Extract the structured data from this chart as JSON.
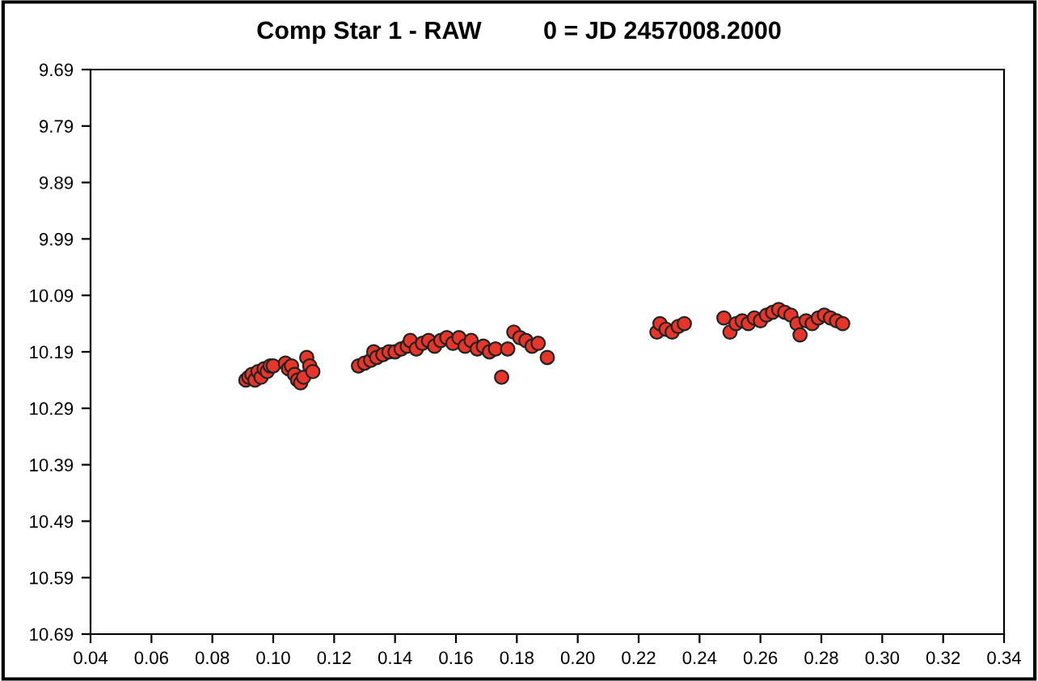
{
  "chart_data": {
    "type": "scatter",
    "title": "Comp Star 1 - RAW         0 = JD 2457008.2000",
    "xlim": [
      0.04,
      0.34
    ],
    "xticks": [
      {
        "value": 0.04,
        "label": "0.04"
      },
      {
        "value": 0.06,
        "label": "0.06"
      },
      {
        "value": 0.08,
        "label": "0.08"
      },
      {
        "value": 0.1,
        "label": "0.10"
      },
      {
        "value": 0.12,
        "label": "0.12"
      },
      {
        "value": 0.14,
        "label": "0.14"
      },
      {
        "value": 0.16,
        "label": "0.16"
      },
      {
        "value": 0.18,
        "label": "0.18"
      },
      {
        "value": 0.2,
        "label": "0.20"
      },
      {
        "value": 0.22,
        "label": "0.22"
      },
      {
        "value": 0.24,
        "label": "0.24"
      },
      {
        "value": 0.26,
        "label": "0.26"
      },
      {
        "value": 0.28,
        "label": "0.28"
      },
      {
        "value": 0.3,
        "label": "0.30"
      },
      {
        "value": 0.32,
        "label": "0.32"
      },
      {
        "value": 0.34,
        "label": "0.34"
      }
    ],
    "ylim": [
      10.69,
      9.69
    ],
    "yticks": [
      9.69,
      9.79,
      9.89,
      9.99,
      10.09,
      10.19,
      10.29,
      10.39,
      10.49,
      10.59,
      10.69
    ],
    "grid": false,
    "marker": "circle",
    "series": [
      {
        "color": "#e8352a",
        "x": [
          0.091,
          0.092,
          0.093,
          0.094,
          0.095,
          0.096,
          0.097,
          0.098,
          0.099,
          0.1,
          0.104,
          0.105,
          0.106,
          0.107,
          0.108,
          0.109,
          0.11,
          0.111,
          0.112,
          0.113,
          0.128,
          0.13,
          0.132,
          0.133,
          0.134,
          0.136,
          0.138,
          0.14,
          0.142,
          0.144,
          0.145,
          0.147,
          0.149,
          0.151,
          0.153,
          0.155,
          0.157,
          0.159,
          0.161,
          0.163,
          0.165,
          0.167,
          0.169,
          0.171,
          0.173,
          0.175,
          0.177,
          0.179,
          0.181,
          0.183,
          0.185,
          0.187,
          0.19,
          0.226,
          0.227,
          0.229,
          0.231,
          0.233,
          0.235,
          0.248,
          0.25,
          0.252,
          0.254,
          0.256,
          0.258,
          0.26,
          0.262,
          0.264,
          0.266,
          0.268,
          0.27,
          0.272,
          0.273,
          0.275,
          0.277,
          0.279,
          0.281,
          0.283,
          0.285,
          0.287
        ],
        "values": [
          10.24,
          10.235,
          10.23,
          10.24,
          10.225,
          10.235,
          10.22,
          10.225,
          10.215,
          10.215,
          10.21,
          10.22,
          10.215,
          10.23,
          10.24,
          10.245,
          10.235,
          10.2,
          10.215,
          10.225,
          10.215,
          10.21,
          10.205,
          10.19,
          10.2,
          10.195,
          10.19,
          10.19,
          10.185,
          10.18,
          10.17,
          10.185,
          10.175,
          10.17,
          10.18,
          10.17,
          10.165,
          10.175,
          10.165,
          10.18,
          10.17,
          10.185,
          10.18,
          10.19,
          10.185,
          10.235,
          10.185,
          10.155,
          10.165,
          10.17,
          10.18,
          10.175,
          10.2,
          10.155,
          10.14,
          10.15,
          10.155,
          10.145,
          10.14,
          10.13,
          10.155,
          10.14,
          10.135,
          10.14,
          10.13,
          10.135,
          10.125,
          10.12,
          10.115,
          10.12,
          10.125,
          10.14,
          10.16,
          10.135,
          10.14,
          10.13,
          10.125,
          10.13,
          10.135,
          10.14
        ]
      }
    ]
  }
}
